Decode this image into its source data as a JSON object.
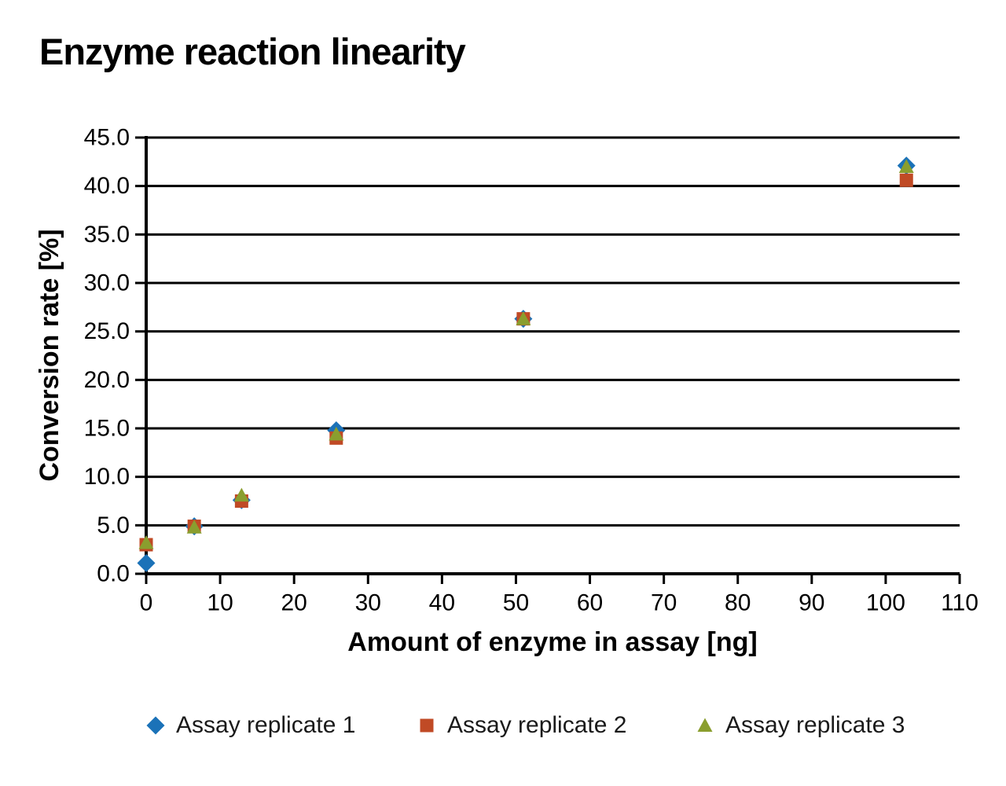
{
  "page": {
    "title": "Enzyme reaction linearity"
  },
  "chart_data": {
    "type": "scatter",
    "title": "Enzyme reaction linearity",
    "xlabel": "Amount of enzyme in assay [ng]",
    "ylabel": "Conversion rate [%]",
    "xlim": [
      0,
      110
    ],
    "ylim": [
      0,
      45
    ],
    "grid": "horizontal-only",
    "legend_position": "bottom",
    "x_ticks": [
      0,
      10,
      20,
      30,
      40,
      50,
      60,
      70,
      80,
      90,
      100,
      110
    ],
    "x_tick_labels": [
      "0",
      "10",
      "20",
      "30",
      "40",
      "50",
      "60",
      "70",
      "80",
      "90",
      "100",
      "110"
    ],
    "y_ticks": [
      0,
      5,
      10,
      15,
      20,
      25,
      30,
      35,
      40,
      45
    ],
    "y_tick_labels": [
      "0.0",
      "5.0",
      "10.0",
      "15.0",
      "20.0",
      "25.0",
      "30.0",
      "35.0",
      "40.0",
      "45.0"
    ],
    "x": [
      0,
      6.5,
      12.9,
      25.7,
      51.0,
      102.8
    ],
    "series": [
      {
        "name": "Assay replicate 1",
        "marker": "diamond",
        "color": "#1b72b8",
        "values": [
          1.1,
          4.9,
          7.6,
          14.8,
          26.3,
          42.1
        ]
      },
      {
        "name": "Assay replicate 2",
        "marker": "square",
        "color": "#c04a25",
        "values": [
          3.0,
          4.9,
          7.5,
          14.0,
          26.3,
          40.6
        ]
      },
      {
        "name": "Assay replicate 3",
        "marker": "triangle",
        "color": "#8a9e2e",
        "values": [
          3.2,
          4.8,
          8.1,
          14.4,
          26.3,
          42.0
        ]
      }
    ],
    "colors": {
      "axis": "#000000",
      "text": "#000000",
      "background": "#ffffff"
    }
  }
}
